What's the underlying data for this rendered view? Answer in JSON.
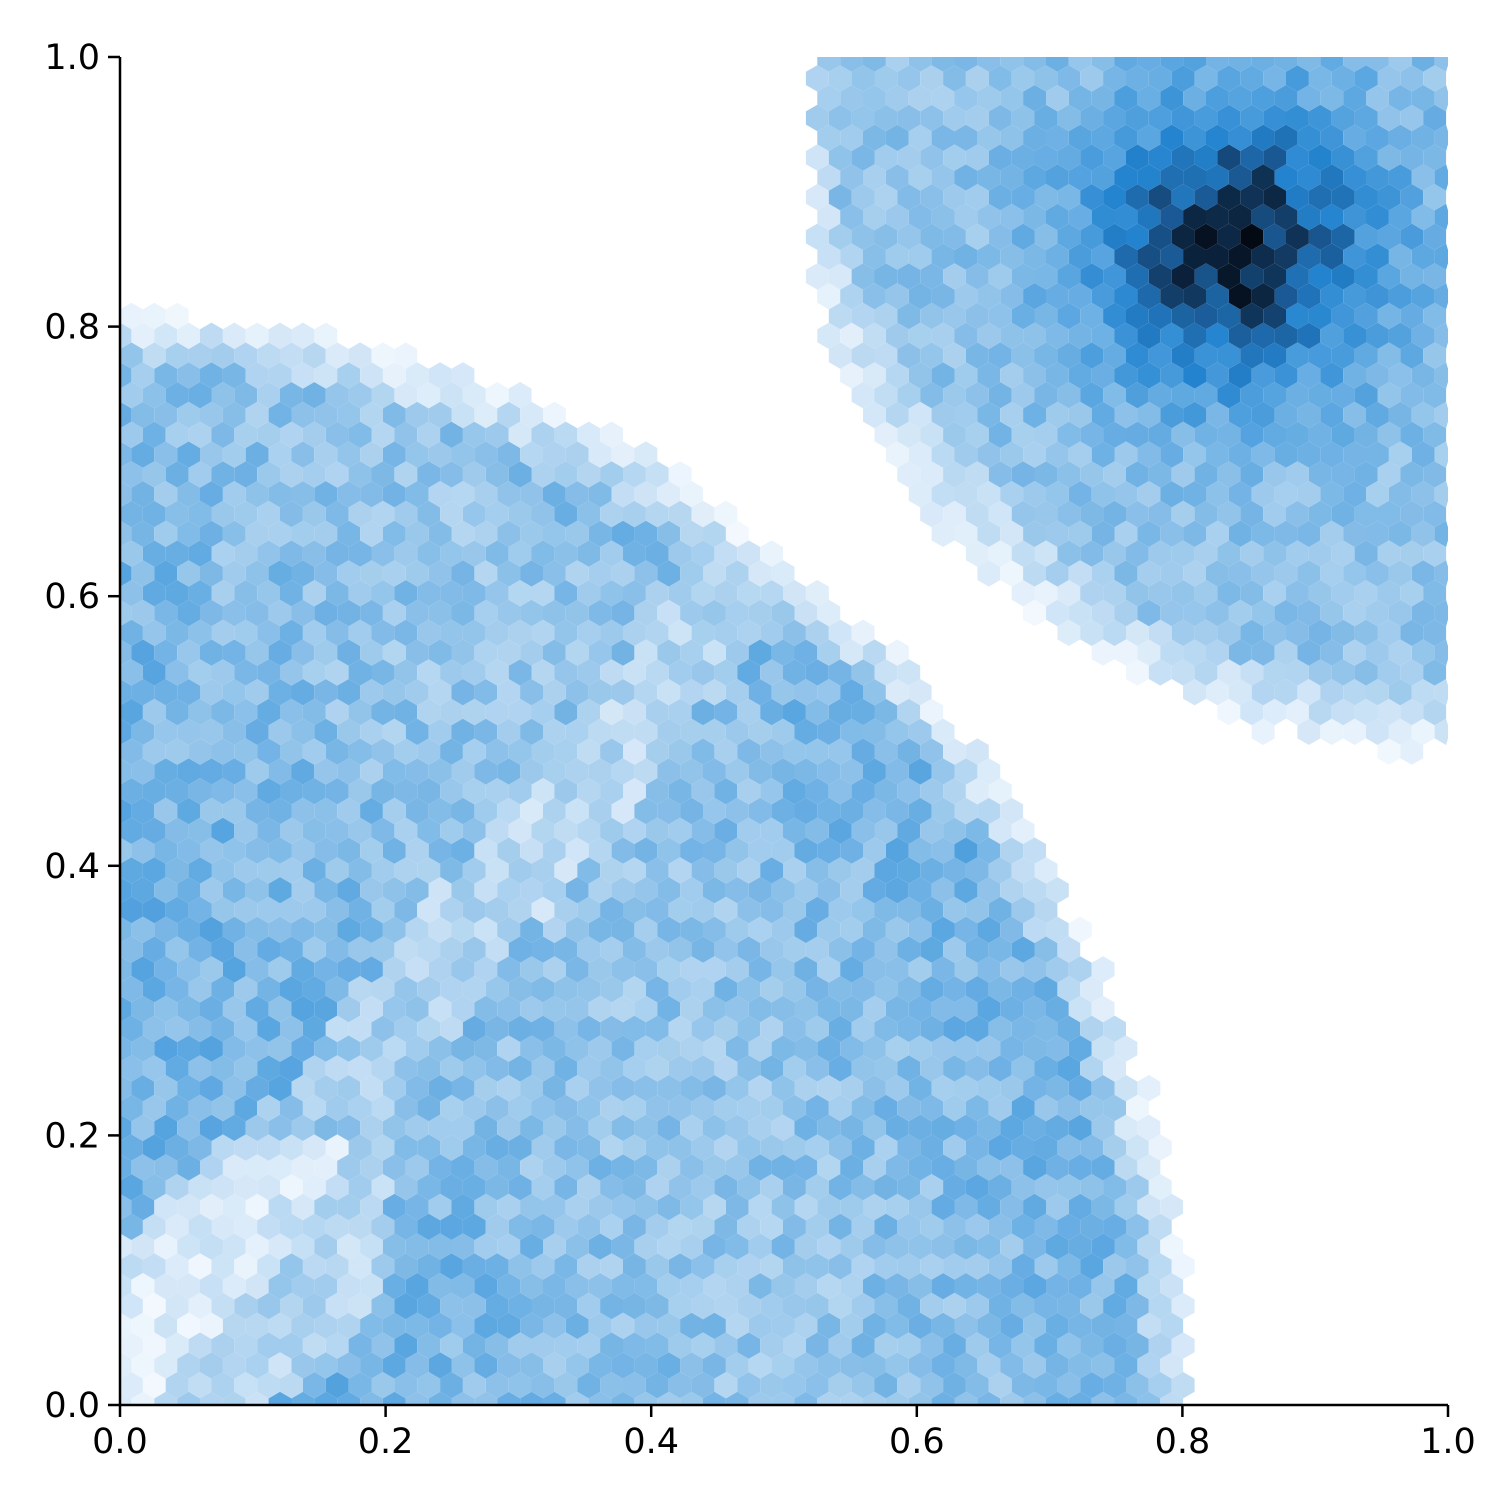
{
  "chart_data": {
    "type": "hexbin",
    "title": "",
    "xlabel": "",
    "ylabel": "",
    "xlim": [
      0.0,
      1.0
    ],
    "ylim": [
      0.0,
      1.0
    ],
    "grid": false,
    "legend": "none",
    "colormap": "Blues",
    "x_ticks": [
      "0.0",
      "0.2",
      "0.4",
      "0.6",
      "0.8",
      "1.0"
    ],
    "y_ticks": [
      "0.0",
      "0.2",
      "0.4",
      "0.6",
      "0.8",
      "1.0"
    ],
    "regions": [
      {
        "shape": "quarter-disk",
        "center": [
          0.0,
          0.0
        ],
        "radius": 0.8,
        "density": "medium",
        "color_range": [
          "#eaf3fc",
          "#2f8fd8"
        ]
      },
      {
        "shape": "annular-band",
        "center": [
          1.0,
          1.0
        ],
        "radius_inner": 0.0,
        "radius_outer": 0.5,
        "density": "high",
        "peak": [
          0.82,
          0.89
        ],
        "color_range": [
          "#eaf3fc",
          "#08121f"
        ]
      }
    ],
    "colors": {
      "axis": "#000000",
      "low": "#f7fbff",
      "high": "#08306b"
    }
  }
}
